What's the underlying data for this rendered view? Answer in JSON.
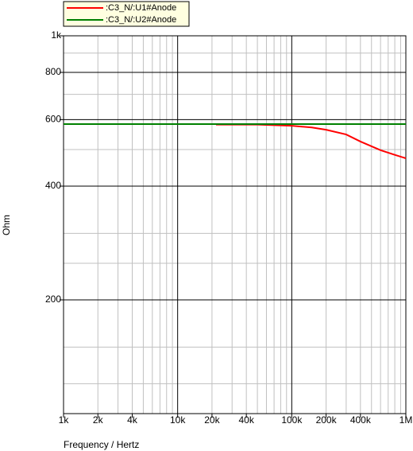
{
  "chart_data": {
    "type": "line",
    "xlabel": "Frequency / Hertz",
    "ylabel": "Ohm",
    "xscale": "log",
    "yscale": "log",
    "grid": true,
    "xlim": [
      1000,
      1000000
    ],
    "ylim": [
      100,
      1000
    ],
    "xticks": [
      {
        "value": 1000,
        "label": "1k"
      },
      {
        "value": 2000,
        "label": "2k"
      },
      {
        "value": 4000,
        "label": "4k"
      },
      {
        "value": 10000,
        "label": "10k"
      },
      {
        "value": 20000,
        "label": "20k"
      },
      {
        "value": 40000,
        "label": "40k"
      },
      {
        "value": 100000,
        "label": "100k"
      },
      {
        "value": 200000,
        "label": "200k"
      },
      {
        "value": 400000,
        "label": "400k"
      },
      {
        "value": 1000000,
        "label": "1M"
      }
    ],
    "yticks": [
      200,
      400,
      600,
      800,
      {
        "value": 1000,
        "label": "1k"
      }
    ],
    "xminor": [
      3000,
      5000,
      6000,
      7000,
      8000,
      9000,
      30000,
      50000,
      60000,
      70000,
      80000,
      90000,
      300000,
      500000,
      600000,
      700000,
      800000,
      900000
    ],
    "yminor": [
      120,
      150,
      250,
      300,
      500,
      700,
      900
    ],
    "legend": "top-left",
    "series": [
      {
        "name": ":C3_N/:U1#Anode",
        "color": "#ff0000",
        "x": [
          21700,
          50000,
          100000,
          150000,
          200000,
          300000,
          400000,
          600000,
          800000,
          1000000
        ],
        "values": [
          582,
          582,
          578,
          572,
          564,
          548,
          525,
          498,
          484,
          474
        ]
      },
      {
        "name": ":C3_N/:U2#Anode",
        "color": "#008000",
        "x": [
          1000,
          1000000
        ],
        "values": [
          584,
          584
        ]
      }
    ]
  }
}
